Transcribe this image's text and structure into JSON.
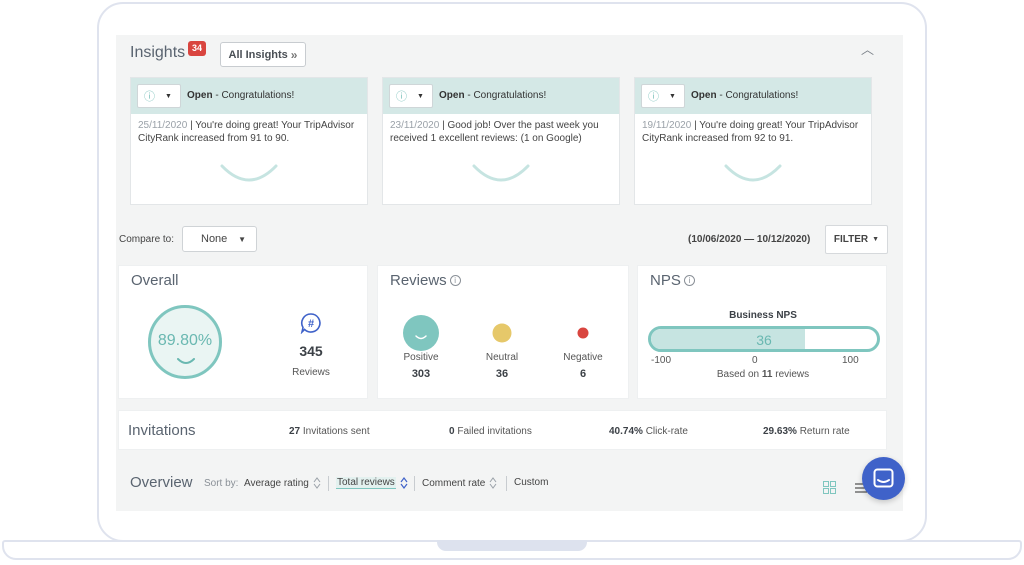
{
  "insights": {
    "title": "Insights",
    "badge": "34",
    "all_button": "All Insights",
    "cards": [
      {
        "status": "Open",
        "status_text": " - Congratulations!",
        "date": "25/11/2020",
        "text": "You're doing great! Your TripAdvisor CityRank increased from 91 to 90."
      },
      {
        "status": "Open",
        "status_text": " - Congratulations!",
        "date": "23/11/2020",
        "text": "Good job! Over the past week you received 1 excellent reviews: (1 on Google)"
      },
      {
        "status": "Open",
        "status_text": " - Congratulations!",
        "date": "19/11/2020",
        "text": "You're doing great! Your TripAdvisor CityRank increased from 92 to 91."
      }
    ]
  },
  "compare": {
    "label": "Compare to:",
    "value": "None"
  },
  "date_range": "(10/06/2020 — 10/12/2020)",
  "filter_label": "FILTER",
  "overall": {
    "title": "Overall",
    "score": "89.80%",
    "reviews_count": "345",
    "reviews_label": "Reviews"
  },
  "reviews": {
    "title": "Reviews",
    "items": [
      {
        "label": "Positive",
        "count": "303"
      },
      {
        "label": "Neutral",
        "count": "36"
      },
      {
        "label": "Negative",
        "count": "6"
      }
    ]
  },
  "nps": {
    "title": "NPS",
    "label": "Business NPS",
    "value": "36",
    "fill_fraction": 0.68,
    "min": "-100",
    "mid": "0",
    "max": "100",
    "based_prefix": "Based on ",
    "based_count": "11",
    "based_suffix": " reviews"
  },
  "invitations": {
    "title": "Invitations",
    "sent": {
      "value": "27",
      "label": " Invitations sent"
    },
    "failed": {
      "value": "0",
      "label": " Failed invitations"
    },
    "click": {
      "value": "40.74%",
      "label": " Click-rate"
    },
    "return": {
      "value": "29.63%",
      "label": " Return rate"
    }
  },
  "overview": {
    "title": "Overview",
    "sort_by": "Sort by:",
    "options": [
      "Average rating",
      "Total reviews",
      "Comment rate",
      "Custom"
    ],
    "active": "Total reviews"
  },
  "colors": {
    "accent": "#7fc6bf",
    "badge": "#d9453f",
    "neutral": "#e6c86a",
    "negative": "#d9453f",
    "chat": "#3f62c9"
  }
}
